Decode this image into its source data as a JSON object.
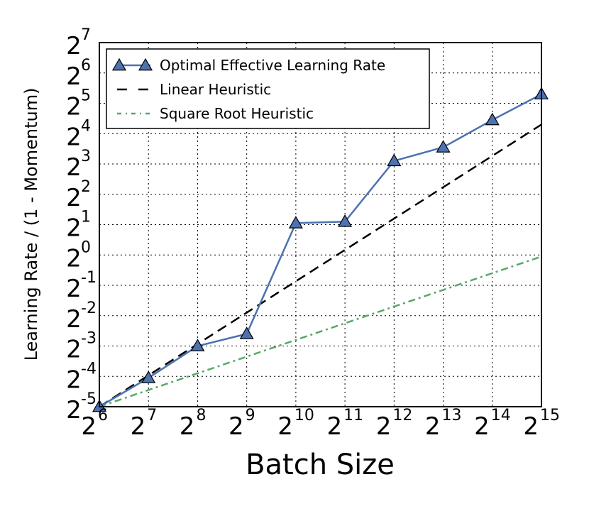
{
  "chart_data": {
    "type": "line",
    "xlabel": "Batch Size",
    "ylabel": "Learning Rate / (1 - Momentum)",
    "x_scale": "log2",
    "y_scale": "log2",
    "xlim_exp": [
      6,
      15
    ],
    "ylim_exp": [
      -5,
      7
    ],
    "grid": true,
    "legend_position": "top-left",
    "x_ticks": [
      {
        "base": "2",
        "exp": "6"
      },
      {
        "base": "2",
        "exp": "7"
      },
      {
        "base": "2",
        "exp": "8"
      },
      {
        "base": "2",
        "exp": "9"
      },
      {
        "base": "2",
        "exp": "10"
      },
      {
        "base": "2",
        "exp": "11"
      },
      {
        "base": "2",
        "exp": "12"
      },
      {
        "base": "2",
        "exp": "13"
      },
      {
        "base": "2",
        "exp": "14"
      },
      {
        "base": "2",
        "exp": "15"
      }
    ],
    "y_ticks": [
      {
        "base": "2",
        "exp": "-5"
      },
      {
        "base": "2",
        "exp": "-4"
      },
      {
        "base": "2",
        "exp": "-3"
      },
      {
        "base": "2",
        "exp": "-2"
      },
      {
        "base": "2",
        "exp": "-1"
      },
      {
        "base": "2",
        "exp": "0"
      },
      {
        "base": "2",
        "exp": "1"
      },
      {
        "base": "2",
        "exp": "2"
      },
      {
        "base": "2",
        "exp": "3"
      },
      {
        "base": "2",
        "exp": "4"
      },
      {
        "base": "2",
        "exp": "5"
      },
      {
        "base": "2",
        "exp": "6"
      },
      {
        "base": "2",
        "exp": "7"
      }
    ],
    "series": [
      {
        "name": "Optimal Effective Learning Rate",
        "color": "#4c72b0",
        "style": "solid",
        "marker": "triangle",
        "x_exp": [
          6,
          7,
          8,
          9,
          10,
          11,
          12,
          13,
          14,
          15
        ],
        "y_exp": [
          -5.0,
          -4.05,
          -3.0,
          -2.6,
          1.05,
          1.1,
          3.1,
          3.55,
          4.45,
          5.3
        ]
      },
      {
        "name": "Linear Heuristic",
        "color": "#000000",
        "style": "dashed",
        "marker": "none",
        "x_exp": [
          6,
          15
        ],
        "y_exp": [
          -5.0,
          4.3
        ]
      },
      {
        "name": "Square Root Heuristic",
        "color": "#55a868",
        "style": "dashdot",
        "marker": "none",
        "x_exp": [
          6,
          15
        ],
        "y_exp": [
          -5.0,
          -0.05
        ]
      }
    ]
  }
}
